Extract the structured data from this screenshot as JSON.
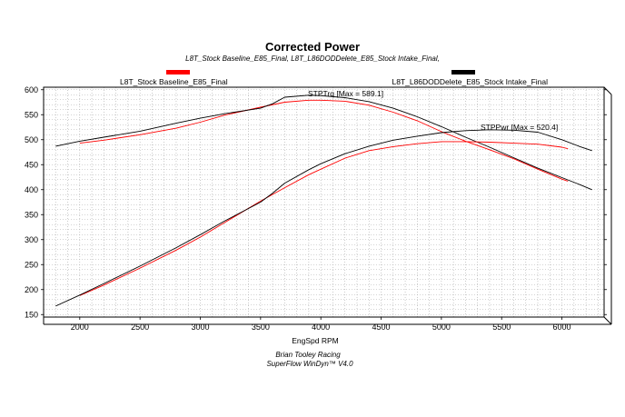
{
  "chart_data": {
    "type": "line",
    "title": "Corrected Power",
    "subtitle": "L8T_Stock Baseline_E85_Final, L8T_L86DODDelete_E85_Stock Intake_Final,",
    "xlabel": "EngSpd RPM",
    "ylabel": "",
    "xlim": [
      1700,
      6350
    ],
    "ylim": [
      145,
      605
    ],
    "xticks": [
      2000,
      2500,
      3000,
      3500,
      4000,
      4500,
      5000,
      5500,
      6000
    ],
    "yticks": [
      150,
      200,
      250,
      300,
      350,
      400,
      450,
      500,
      550,
      600
    ],
    "grid": true,
    "legend": {
      "placement": "top",
      "entries": [
        {
          "name": "L8T_Stock Baseline_E85_Final",
          "color": "#ff0000"
        },
        {
          "name": "L8T_L86DODDelete_E85_Stock Intake_Final",
          "color": "#000000"
        }
      ]
    },
    "annotations": {
      "torque": "STPTrq [Max = 589.1]",
      "power": "STPPwr [Max = 520.4]"
    },
    "series": [
      {
        "name": "L8T_Stock Baseline_E85_Final",
        "measure": "STPTrq",
        "color": "#ff0000",
        "x": [
          2000,
          2200,
          2500,
          2800,
          3000,
          3200,
          3500,
          3700,
          3900,
          4000,
          4200,
          4400,
          4600,
          4800,
          5000,
          5200,
          5400,
          5600,
          5800,
          6000,
          6050
        ],
        "y": [
          493,
          499,
          510,
          523,
          535,
          549,
          565,
          575,
          579,
          579,
          577,
          569,
          555,
          538,
          516,
          497,
          480,
          462,
          441,
          421,
          417
        ]
      },
      {
        "name": "L8T_L86DODDelete_E85_Stock Intake_Final",
        "measure": "STPTrq",
        "color": "#000000",
        "x": [
          1800,
          2000,
          2200,
          2500,
          2800,
          3000,
          3200,
          3500,
          3600,
          3700,
          3900,
          4000,
          4200,
          4400,
          4600,
          4800,
          5000,
          5200,
          5400,
          5600,
          5800,
          6000,
          6150,
          6250
        ],
        "y": [
          487,
          497,
          505,
          517,
          533,
          543,
          552,
          563,
          572,
          585,
          589,
          588,
          584,
          576,
          563,
          546,
          526,
          505,
          485,
          464,
          443,
          424,
          410,
          400
        ]
      },
      {
        "name": "L8T_Stock Baseline_E85_Final",
        "measure": "STPPwr",
        "color": "#ff0000",
        "x": [
          2000,
          2200,
          2500,
          2800,
          3000,
          3200,
          3500,
          3700,
          3900,
          4000,
          4200,
          4400,
          4600,
          4800,
          5000,
          5200,
          5400,
          5600,
          5800,
          6000,
          6050
        ],
        "y": [
          188,
          209,
          243,
          279,
          305,
          334,
          377,
          404,
          430,
          441,
          463,
          478,
          486,
          492,
          496,
          496,
          495,
          493,
          491,
          485,
          482
        ]
      },
      {
        "name": "L8T_L86DODDelete_E85_Stock Intake_Final",
        "measure": "STPPwr",
        "color": "#000000",
        "x": [
          1800,
          2000,
          2200,
          2500,
          2800,
          3000,
          3200,
          3500,
          3600,
          3700,
          3900,
          4000,
          4200,
          4400,
          4600,
          4800,
          5000,
          5200,
          5400,
          5600,
          5800,
          6000,
          6150,
          6250
        ],
        "y": [
          167,
          189,
          212,
          247,
          284,
          310,
          337,
          375,
          393,
          413,
          440,
          452,
          472,
          487,
          499,
          507,
          514,
          518,
          520,
          519,
          515,
          500,
          486,
          478
        ]
      }
    ]
  },
  "footer": {
    "line1": "Brian Tooley Racing",
    "line2": "SuperFlow WinDyn™  V4.0"
  }
}
